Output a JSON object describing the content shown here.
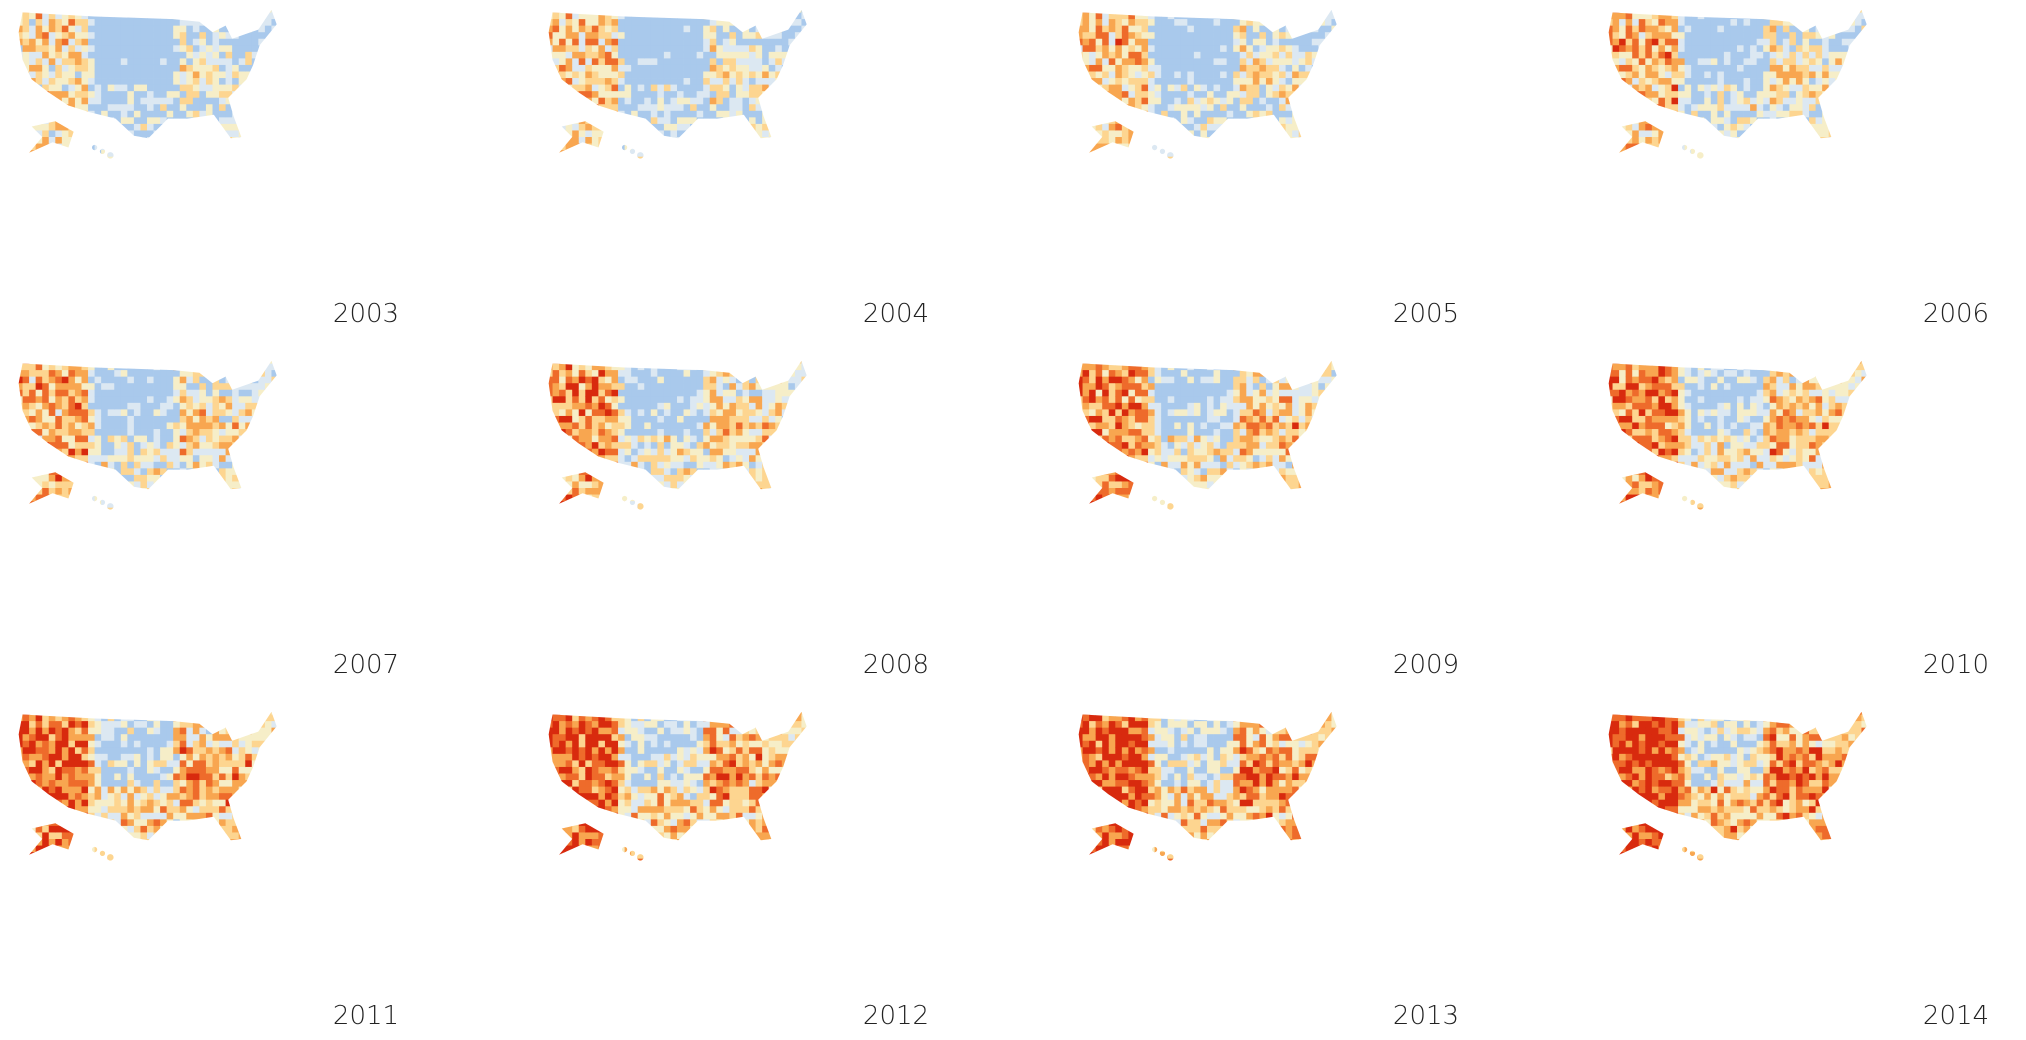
{
  "panels": [
    {
      "label": "2003"
    },
    {
      "label": "2004"
    },
    {
      "label": "2005"
    },
    {
      "label": "2006"
    },
    {
      "label": "2007"
    },
    {
      "label": "2008"
    },
    {
      "label": "2009"
    },
    {
      "label": "2010"
    },
    {
      "label": "2011"
    },
    {
      "label": "2012"
    },
    {
      "label": "2013"
    },
    {
      "label": "2014"
    }
  ]
}
